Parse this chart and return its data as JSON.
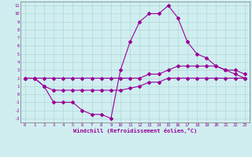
{
  "xlabel": "Windchill (Refroidissement éolien,°C)",
  "xlim": [
    -0.5,
    23.5
  ],
  "ylim": [
    -3.5,
    11.5
  ],
  "xticks": [
    0,
    1,
    2,
    3,
    4,
    5,
    6,
    7,
    8,
    9,
    10,
    11,
    12,
    13,
    14,
    15,
    16,
    17,
    18,
    19,
    20,
    21,
    22,
    23
  ],
  "yticks": [
    -3,
    -2,
    -1,
    0,
    1,
    2,
    3,
    4,
    5,
    6,
    7,
    8,
    9,
    10,
    11
  ],
  "bg_color": "#d0eef0",
  "line_color": "#990099",
  "grid_color": "#b0d8d8",
  "line1_x": [
    0,
    1,
    2,
    3,
    4,
    5,
    6,
    7,
    8,
    9,
    10,
    11,
    12,
    13,
    14,
    15,
    16,
    17,
    18,
    19,
    20,
    21,
    22,
    23
  ],
  "line1_y": [
    2.0,
    2.0,
    1.0,
    -1.0,
    -1.0,
    -1.0,
    -2.0,
    -2.5,
    -2.5,
    -3.0,
    3.0,
    6.5,
    9.0,
    10.0,
    10.0,
    11.0,
    9.5,
    6.5,
    5.0,
    4.5,
    3.5,
    3.0,
    2.5,
    2.0
  ],
  "line2_x": [
    0,
    1,
    2,
    3,
    4,
    5,
    6,
    7,
    8,
    9,
    10,
    11,
    12,
    13,
    14,
    15,
    16,
    17,
    18,
    19,
    20,
    21,
    22,
    23
  ],
  "line2_y": [
    2.0,
    2.0,
    2.0,
    2.0,
    2.0,
    2.0,
    2.0,
    2.0,
    2.0,
    2.0,
    2.0,
    2.0,
    2.0,
    2.5,
    2.5,
    3.0,
    3.5,
    3.5,
    3.5,
    3.5,
    3.5,
    3.0,
    3.0,
    2.5
  ],
  "line3_x": [
    0,
    1,
    2,
    3,
    4,
    5,
    6,
    7,
    8,
    9,
    10,
    11,
    12,
    13,
    14,
    15,
    16,
    17,
    18,
    19,
    20,
    21,
    22,
    23
  ],
  "line3_y": [
    2.0,
    2.0,
    1.0,
    0.5,
    0.5,
    0.5,
    0.5,
    0.5,
    0.5,
    0.5,
    0.5,
    0.75,
    1.0,
    1.5,
    1.5,
    2.0,
    2.0,
    2.0,
    2.0,
    2.0,
    2.0,
    2.0,
    2.0,
    2.0
  ]
}
